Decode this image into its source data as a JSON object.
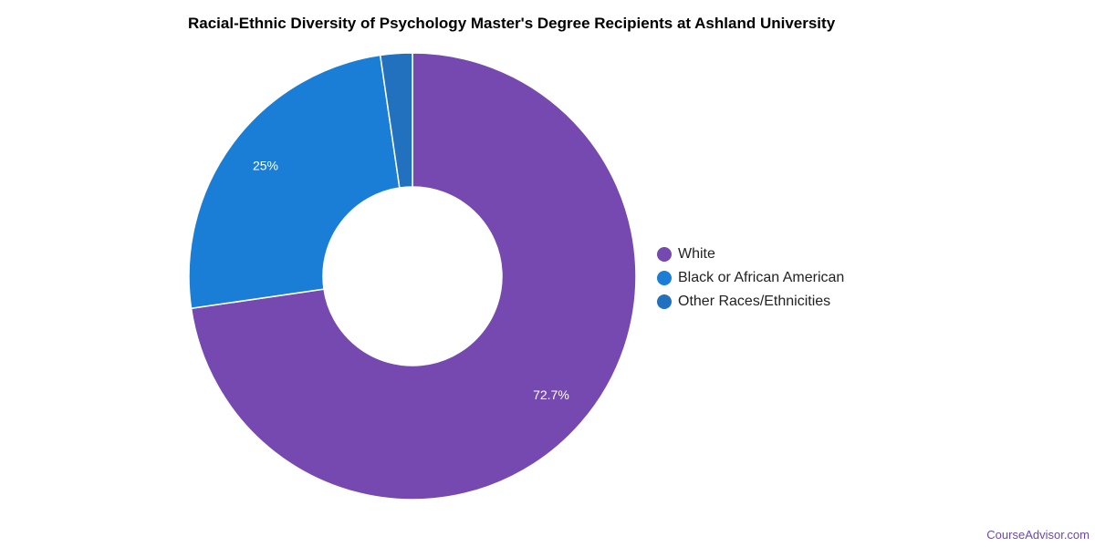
{
  "chart_data": {
    "type": "pie",
    "title": "Racial-Ethnic Diversity of Psychology Master's Degree Recipients at Ashland University",
    "donut": true,
    "legend_position": "right",
    "slices": [
      {
        "name": "White",
        "value": 72.7,
        "label": "72.7%",
        "color": "#7549b0"
      },
      {
        "name": "Black or African American",
        "value": 25.0,
        "label": "25%",
        "color": "#1a7ed6"
      },
      {
        "name": "Other Races/Ethnicities",
        "value": 2.3,
        "label": "",
        "color": "#2271bf"
      }
    ]
  },
  "watermark": "CourseAdvisor.com"
}
